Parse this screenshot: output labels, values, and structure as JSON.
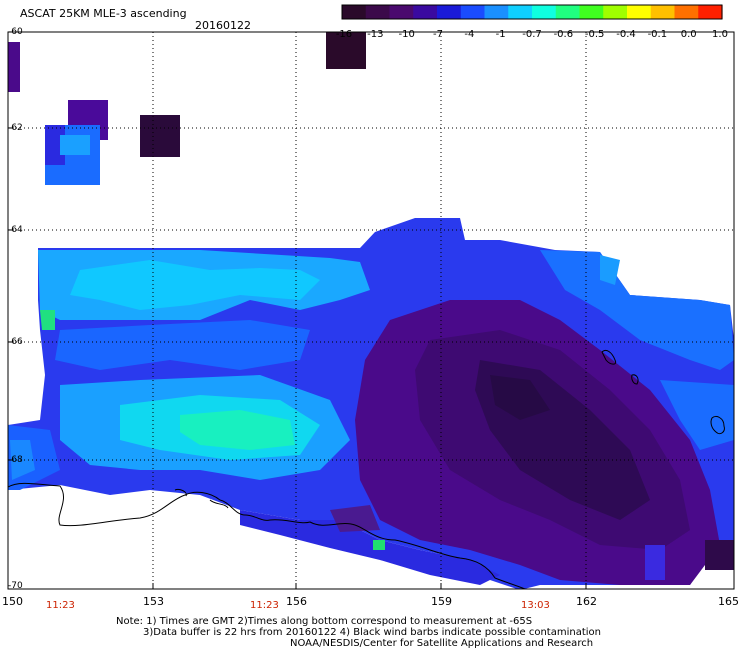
{
  "header": {
    "title": "ASCAT 25KM MLE-3 ascending",
    "date": "20160122"
  },
  "colorbar": {
    "labels": [
      "-16",
      "-13",
      "-10",
      "-7",
      "-4",
      "-1",
      "-0.7",
      "-0.6",
      "-0.5",
      "-0.4",
      "-0.1",
      "0.0",
      "1.0"
    ],
    "colors": [
      "#2a0a2a",
      "#3b0a4a",
      "#4a0a6e",
      "#3a0aa0",
      "#1a1ad8",
      "#1a4cff",
      "#1a90ff",
      "#10d0ff",
      "#10ffe0",
      "#20ff80",
      "#40ff20",
      "#a0ff00",
      "#ffff00",
      "#ffc000",
      "#ff7000",
      "#ff2000"
    ]
  },
  "axes": {
    "lat_labels": [
      "-60",
      "-62",
      "-64",
      "-66",
      "-68",
      "-70"
    ],
    "lon_labels": [
      "150",
      "153",
      "156",
      "159",
      "162",
      "165"
    ]
  },
  "times": [
    "11:23",
    "11:23",
    "13:03"
  ],
  "notes": [
    "Note: 1) Times are GMT 2)Times along bottom correspond to measurement at -65S",
    "3)Data buffer is 22 hrs from 20160122 4) Black wind barbs indicate possible contamination",
    "NOAA/NESDIS/Center for Satellite Applications and Research"
  ]
}
